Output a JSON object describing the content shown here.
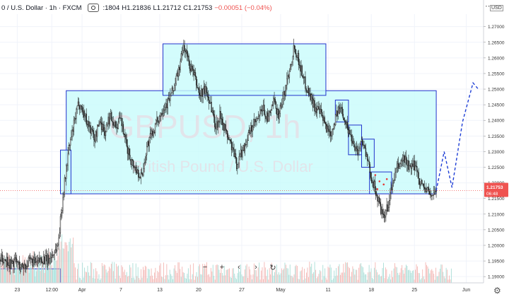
{
  "header": {
    "symbol": "0 / U.S. Dollar · 1h · FXCM",
    "ohlc": [
      {
        "text": ":1804",
        "tone": "normal"
      },
      {
        "text": "H1.21836",
        "tone": "normal"
      },
      {
        "text": "L1.21712",
        "tone": "normal"
      },
      {
        "text": "C1.21753",
        "tone": "normal"
      },
      {
        "text": "−0.00051 (−0.04%)",
        "tone": "neg"
      }
    ],
    "menu_icon": "more-dots-icon"
  },
  "watermark": {
    "ticker": "GBPUSD, 1h",
    "name": "British Pound / U.S. Dollar"
  },
  "price_axis": {
    "currency": "USD",
    "ticks": [
      "1.27000",
      "1.26500",
      "1.26000",
      "1.25500",
      "1.25000",
      "1.24500",
      "1.24000",
      "1.23500",
      "1.23000",
      "1.22500",
      "1.22000",
      "1.21500",
      "1.21000",
      "1.20500",
      "1.20000",
      "1.19500",
      "1.19000"
    ],
    "last_price": "1.21753",
    "countdown": "06:48"
  },
  "time_axis": {
    "ticks": [
      "23",
      "12:00",
      "Apr",
      "7",
      "13",
      "20",
      "27",
      "May",
      "11",
      "18",
      "25",
      "Jun"
    ]
  },
  "toolbar": {
    "buttons": [
      "−",
      "+",
      "‹",
      "›",
      "↻"
    ],
    "settings_icon": "gear-icon"
  },
  "colors": {
    "up_candle": "#26a69a",
    "candle": "#222222",
    "zone_fill": "#c8fbfb",
    "zone_border": "#2233cc",
    "projection": "#1f3fd6",
    "price_line": "#ef5350",
    "price_tag": "#ef5350"
  },
  "chart_data": {
    "type": "candlestick",
    "symbol": "GBPUSD",
    "timeframe": "1h",
    "ylim": [
      1.188,
      1.274
    ],
    "last_price": 1.21753,
    "path": [
      [
        0,
        1.195
      ],
      [
        1,
        1.196
      ],
      [
        2,
        1.194
      ],
      [
        3,
        1.195
      ],
      [
        4,
        1.193
      ],
      [
        5,
        1.194
      ],
      [
        6,
        1.195
      ],
      [
        7,
        1.194
      ],
      [
        8,
        1.196
      ],
      [
        9,
        1.195
      ],
      [
        10,
        1.197
      ],
      [
        11,
        1.2
      ],
      [
        12,
        1.216
      ],
      [
        13,
        1.23
      ],
      [
        14,
        1.238
      ],
      [
        15,
        1.246
      ],
      [
        16,
        1.242
      ],
      [
        17,
        1.238
      ],
      [
        18,
        1.234
      ],
      [
        19,
        1.24
      ],
      [
        20,
        1.236
      ],
      [
        21,
        1.242
      ],
      [
        22,
        1.238
      ],
      [
        23,
        1.24
      ],
      [
        24,
        1.232
      ],
      [
        25,
        1.227
      ],
      [
        26,
        1.224
      ],
      [
        27,
        1.222
      ],
      [
        28,
        1.232
      ],
      [
        29,
        1.236
      ],
      [
        30,
        1.24
      ],
      [
        31,
        1.244
      ],
      [
        32,
        1.246
      ],
      [
        33,
        1.25
      ],
      [
        34,
        1.256
      ],
      [
        35,
        1.264
      ],
      [
        36,
        1.258
      ],
      [
        37,
        1.254
      ],
      [
        38,
        1.248
      ],
      [
        39,
        1.25
      ],
      [
        40,
        1.246
      ],
      [
        41,
        1.238
      ],
      [
        42,
        1.242
      ],
      [
        43,
        1.236
      ],
      [
        44,
        1.232
      ],
      [
        45,
        1.226
      ],
      [
        46,
        1.23
      ],
      [
        47,
        1.234
      ],
      [
        48,
        1.238
      ],
      [
        49,
        1.24
      ],
      [
        50,
        1.244
      ],
      [
        51,
        1.24
      ],
      [
        52,
        1.246
      ],
      [
        53,
        1.242
      ],
      [
        54,
        1.248
      ],
      [
        55,
        1.256
      ],
      [
        56,
        1.264
      ],
      [
        57,
        1.258
      ],
      [
        58,
        1.252
      ],
      [
        59,
        1.248
      ],
      [
        60,
        1.244
      ],
      [
        61,
        1.242
      ],
      [
        62,
        1.238
      ],
      [
        63,
        1.236
      ],
      [
        64,
        1.242
      ],
      [
        65,
        1.244
      ],
      [
        66,
        1.238
      ],
      [
        67,
        1.234
      ],
      [
        68,
        1.23
      ],
      [
        69,
        1.234
      ],
      [
        70,
        1.226
      ],
      [
        71,
        1.22
      ],
      [
        72,
        1.214
      ],
      [
        73,
        1.208
      ],
      [
        74,
        1.214
      ],
      [
        75,
        1.222
      ],
      [
        76,
        1.226
      ],
      [
        77,
        1.228
      ],
      [
        78,
        1.224
      ],
      [
        79,
        1.226
      ],
      [
        80,
        1.22
      ],
      [
        81,
        1.218
      ],
      [
        82,
        1.216
      ],
      [
        83,
        1.2175
      ]
    ],
    "zones": [
      {
        "name": "range",
        "t0": 12.6,
        "t1": 83,
        "y0": 1.2165,
        "y1": 1.2495
      },
      {
        "name": "top",
        "t0": 31,
        "t1": 62,
        "y0": 1.248,
        "y1": 1.2645
      },
      {
        "name": "left",
        "t0": 11.5,
        "t1": 13.5,
        "y0": 1.2165,
        "y1": 1.2305
      },
      {
        "name": "bottom",
        "t0": 0,
        "t1": 11.5,
        "y0": 1.188,
        "y1": 1.1925
      },
      {
        "name": "z1",
        "t0": 63.8,
        "t1": 66.3,
        "y0": 1.2395,
        "y1": 1.2465
      },
      {
        "name": "z2",
        "t0": 66.3,
        "t1": 68.8,
        "y0": 1.229,
        "y1": 1.2385
      },
      {
        "name": "z3",
        "t0": 68.8,
        "t1": 71.2,
        "y0": 1.225,
        "y1": 1.234
      },
      {
        "name": "z4",
        "t0": 70.3,
        "t1": 74.5,
        "y0": 1.2165,
        "y1": 1.2235
      }
    ],
    "projection": [
      [
        83,
        1.2175
      ],
      [
        84.5,
        1.23
      ],
      [
        86,
        1.2185
      ],
      [
        88,
        1.2395
      ],
      [
        90,
        1.252
      ],
      [
        91,
        1.25
      ]
    ]
  }
}
